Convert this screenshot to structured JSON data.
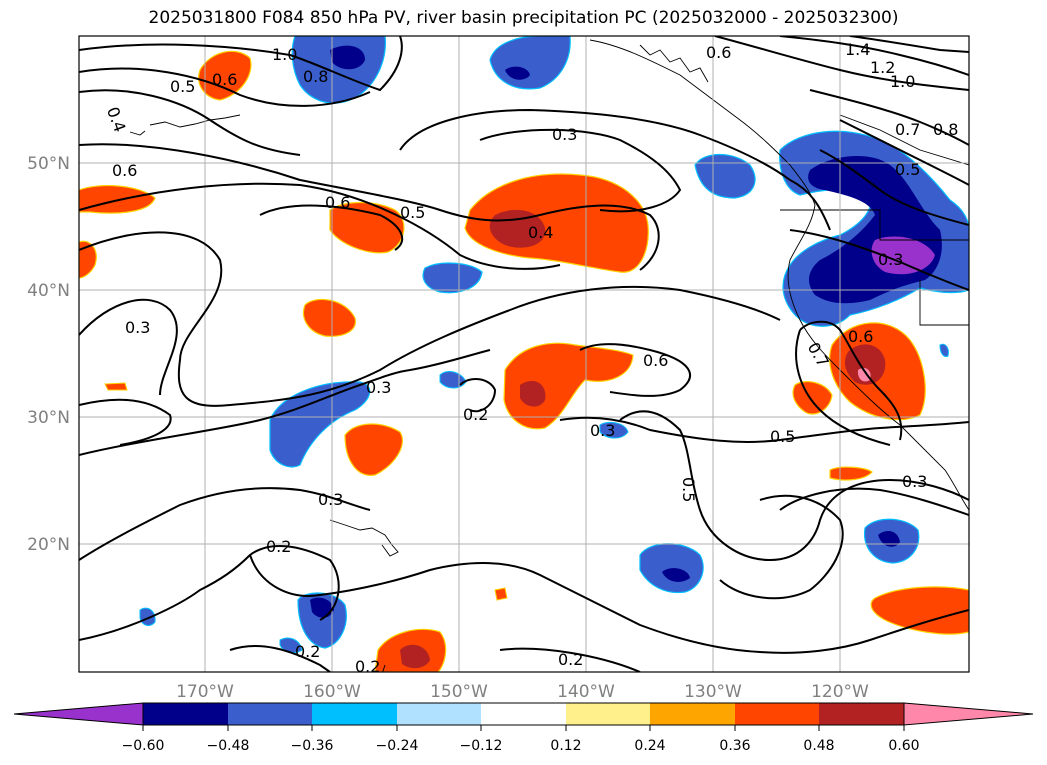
{
  "title": "2025031800 F084 850 hPa PV, river basin precipitation PC (2025032000 - 2025032300)",
  "map": {
    "lat_labels": [
      "50°N",
      "40°N",
      "30°N",
      "20°N"
    ],
    "lon_labels": [
      "170°W",
      "160°W",
      "150°W",
      "140°W",
      "130°W",
      "120°W"
    ],
    "grid": true
  },
  "contour_labels": [
    {
      "text": "1.0"
    },
    {
      "text": "0.8"
    },
    {
      "text": "0.6"
    },
    {
      "text": "0.5"
    },
    {
      "text": "0.4"
    },
    {
      "text": "0.6"
    },
    {
      "text": "0.6"
    },
    {
      "text": "0.5"
    },
    {
      "text": "0.3"
    },
    {
      "text": "0.4"
    },
    {
      "text": "0.6"
    },
    {
      "text": "1.4"
    },
    {
      "text": "1.2"
    },
    {
      "text": "1.0"
    },
    {
      "text": "0.7"
    },
    {
      "text": "0.8"
    },
    {
      "text": "0.5"
    },
    {
      "text": "0.3"
    },
    {
      "text": "0.3"
    },
    {
      "text": "0.3"
    },
    {
      "text": "0.2"
    },
    {
      "text": "0.6"
    },
    {
      "text": "0.3"
    },
    {
      "text": "0.5"
    },
    {
      "text": "0.5"
    },
    {
      "text": "0.7"
    },
    {
      "text": "0.6"
    },
    {
      "text": "0.3"
    },
    {
      "text": "0.3"
    },
    {
      "text": "0.2"
    },
    {
      "text": "0.2"
    },
    {
      "text": "0.2"
    },
    {
      "text": "0.2"
    }
  ],
  "colorbar": {
    "ticks": [
      "−0.60",
      "−0.48",
      "−0.36",
      "−0.24",
      "−0.12",
      "0.12",
      "0.24",
      "0.36",
      "0.48",
      "0.60"
    ],
    "colors": [
      "#9932cc",
      "#00008b",
      "#3a5fcd",
      "#00bfff",
      "#b0e2ff",
      "#ffffff",
      "#fff08c",
      "#ffa500",
      "#ff4500",
      "#b22222",
      "#ff88aa"
    ]
  }
}
